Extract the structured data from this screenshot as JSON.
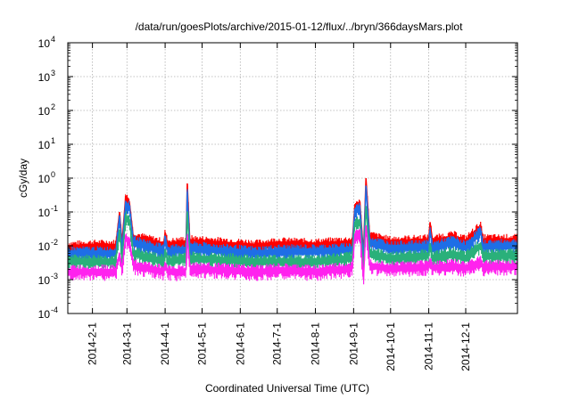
{
  "chart_data": {
    "type": "line",
    "title": "/data/run/goesPlots/archive/2015-01-12/flux/../bryn/366daysMars.plot",
    "xlabel": "Coordinated Universal Time (UTC)",
    "ylabel": "cGy/day",
    "y_scale": "log",
    "ylim": [
      0.0001,
      10000
    ],
    "xlim": [
      "2014-01-12",
      "2015-01-12"
    ],
    "grid": true,
    "legend": "none",
    "y_ticks": [
      {
        "base": "10",
        "exp": "-4",
        "value": 0.0001
      },
      {
        "base": "10",
        "exp": "-3",
        "value": 0.001
      },
      {
        "base": "10",
        "exp": "-2",
        "value": 0.01
      },
      {
        "base": "10",
        "exp": "-1",
        "value": 0.1
      },
      {
        "base": "10",
        "exp": "0",
        "value": 1
      },
      {
        "base": "10",
        "exp": "1",
        "value": 10
      },
      {
        "base": "10",
        "exp": "2",
        "value": 100
      },
      {
        "base": "10",
        "exp": "3",
        "value": 1000
      },
      {
        "base": "10",
        "exp": "4",
        "value": 10000
      }
    ],
    "x_ticks": [
      {
        "label": "2014-2-1",
        "date": "2014-02-01"
      },
      {
        "label": "2014-3-1",
        "date": "2014-03-01"
      },
      {
        "label": "2014-4-1",
        "date": "2014-04-01"
      },
      {
        "label": "2014-5-1",
        "date": "2014-05-01"
      },
      {
        "label": "2014-6-1",
        "date": "2014-06-01"
      },
      {
        "label": "2014-7-1",
        "date": "2014-07-01"
      },
      {
        "label": "2014-8-1",
        "date": "2014-08-01"
      },
      {
        "label": "2014-9-1",
        "date": "2014-09-01"
      },
      {
        "label": "2014-10-1",
        "date": "2014-10-01"
      },
      {
        "label": "2014-11-1",
        "date": "2014-11-01"
      },
      {
        "label": "2014-12-1",
        "date": "2014-12-01"
      }
    ],
    "series": [
      {
        "color": "#ff0000",
        "points": [
          [
            "2014-01-12",
            0.01
          ],
          [
            "2014-02-01",
            0.011
          ],
          [
            "2014-02-20",
            0.011
          ],
          [
            "2014-02-23",
            0.1
          ],
          [
            "2014-02-25",
            0.012
          ],
          [
            "2014-02-28",
            0.3
          ],
          [
            "2014-03-03",
            0.2
          ],
          [
            "2014-03-06",
            0.02
          ],
          [
            "2014-03-31",
            0.012
          ],
          [
            "2014-04-01",
            0.025
          ],
          [
            "2014-04-03",
            0.012
          ],
          [
            "2014-04-18",
            0.014
          ],
          [
            "2014-04-19",
            0.7
          ],
          [
            "2014-04-21",
            0.015
          ],
          [
            "2014-06-15",
            0.011
          ],
          [
            "2014-07-01",
            0.013
          ],
          [
            "2014-08-01",
            0.012
          ],
          [
            "2014-08-31",
            0.014
          ],
          [
            "2014-09-02",
            0.15
          ],
          [
            "2014-09-06",
            0.2
          ],
          [
            "2014-09-09",
            0.006
          ],
          [
            "2014-09-11",
            1.0
          ],
          [
            "2014-09-14",
            0.02
          ],
          [
            "2014-10-01",
            0.014
          ],
          [
            "2014-11-01",
            0.016
          ],
          [
            "2014-11-02",
            0.05
          ],
          [
            "2014-11-04",
            0.015
          ],
          [
            "2014-11-21",
            0.02
          ],
          [
            "2014-12-01",
            0.015
          ],
          [
            "2014-12-13",
            0.04
          ],
          [
            "2014-12-15",
            0.016
          ],
          [
            "2015-01-12",
            0.016
          ]
        ]
      },
      {
        "color": "#1e6ee6",
        "points": [
          [
            "2014-01-12",
            0.007
          ],
          [
            "2014-02-01",
            0.007
          ],
          [
            "2014-02-20",
            0.007
          ],
          [
            "2014-02-23",
            0.08
          ],
          [
            "2014-02-25",
            0.008
          ],
          [
            "2014-02-28",
            0.2
          ],
          [
            "2014-03-03",
            0.15
          ],
          [
            "2014-03-06",
            0.015
          ],
          [
            "2014-03-31",
            0.008
          ],
          [
            "2014-04-01",
            0.02
          ],
          [
            "2014-04-03",
            0.008
          ],
          [
            "2014-04-18",
            0.009
          ],
          [
            "2014-04-19",
            0.4
          ],
          [
            "2014-04-21",
            0.01
          ],
          [
            "2014-06-15",
            0.007
          ],
          [
            "2014-07-01",
            0.008
          ],
          [
            "2014-08-01",
            0.008
          ],
          [
            "2014-08-31",
            0.009
          ],
          [
            "2014-09-02",
            0.12
          ],
          [
            "2014-09-06",
            0.15
          ],
          [
            "2014-09-09",
            0.004
          ],
          [
            "2014-09-11",
            0.6
          ],
          [
            "2014-09-14",
            0.015
          ],
          [
            "2014-10-01",
            0.01
          ],
          [
            "2014-11-01",
            0.011
          ],
          [
            "2014-11-02",
            0.03
          ],
          [
            "2014-11-04",
            0.01
          ],
          [
            "2014-11-21",
            0.015
          ],
          [
            "2014-12-01",
            0.01
          ],
          [
            "2014-12-13",
            0.03
          ],
          [
            "2014-12-15",
            0.011
          ],
          [
            "2015-01-12",
            0.012
          ]
        ]
      },
      {
        "color": "#2ab07a",
        "points": [
          [
            "2014-01-12",
            0.004
          ],
          [
            "2014-02-01",
            0.004
          ],
          [
            "2014-02-20",
            0.004
          ],
          [
            "2014-02-23",
            0.03
          ],
          [
            "2014-02-25",
            0.004
          ],
          [
            "2014-02-28",
            0.08
          ],
          [
            "2014-03-03",
            0.06
          ],
          [
            "2014-03-06",
            0.007
          ],
          [
            "2014-03-31",
            0.004
          ],
          [
            "2014-04-01",
            0.008
          ],
          [
            "2014-04-03",
            0.004
          ],
          [
            "2014-04-18",
            0.005
          ],
          [
            "2014-04-19",
            0.1
          ],
          [
            "2014-04-21",
            0.005
          ],
          [
            "2014-06-15",
            0.004
          ],
          [
            "2014-07-01",
            0.004
          ],
          [
            "2014-08-01",
            0.004
          ],
          [
            "2014-08-31",
            0.005
          ],
          [
            "2014-09-02",
            0.05
          ],
          [
            "2014-09-06",
            0.06
          ],
          [
            "2014-09-09",
            0.002
          ],
          [
            "2014-09-11",
            0.15
          ],
          [
            "2014-09-14",
            0.007
          ],
          [
            "2014-10-01",
            0.005
          ],
          [
            "2014-11-01",
            0.006
          ],
          [
            "2014-11-02",
            0.012
          ],
          [
            "2014-11-04",
            0.005
          ],
          [
            "2014-11-21",
            0.007
          ],
          [
            "2014-12-01",
            0.005
          ],
          [
            "2014-12-13",
            0.012
          ],
          [
            "2014-12-15",
            0.006
          ],
          [
            "2015-01-12",
            0.006
          ]
        ]
      },
      {
        "color": "#ff22ee",
        "points": [
          [
            "2014-01-12",
            0.002
          ],
          [
            "2014-02-01",
            0.002
          ],
          [
            "2014-02-20",
            0.002
          ],
          [
            "2014-02-23",
            0.006
          ],
          [
            "2014-02-25",
            0.002
          ],
          [
            "2014-02-28",
            0.02
          ],
          [
            "2014-03-03",
            0.015
          ],
          [
            "2014-03-06",
            0.003
          ],
          [
            "2014-03-31",
            0.002
          ],
          [
            "2014-04-01",
            0.003
          ],
          [
            "2014-04-03",
            0.002
          ],
          [
            "2014-04-18",
            0.002
          ],
          [
            "2014-04-19",
            0.02
          ],
          [
            "2014-04-21",
            0.0025
          ],
          [
            "2014-06-15",
            0.002
          ],
          [
            "2014-07-01",
            0.0022
          ],
          [
            "2014-08-01",
            0.002
          ],
          [
            "2014-08-31",
            0.0025
          ],
          [
            "2014-09-02",
            0.02
          ],
          [
            "2014-09-06",
            0.03
          ],
          [
            "2014-09-09",
            0.001
          ],
          [
            "2014-09-11",
            0.04
          ],
          [
            "2014-09-14",
            0.003
          ],
          [
            "2014-10-01",
            0.0025
          ],
          [
            "2014-11-01",
            0.0028
          ],
          [
            "2014-11-02",
            0.004
          ],
          [
            "2014-11-04",
            0.0026
          ],
          [
            "2014-11-21",
            0.003
          ],
          [
            "2014-12-01",
            0.0025
          ],
          [
            "2014-12-13",
            0.004
          ],
          [
            "2014-12-15",
            0.0028
          ],
          [
            "2015-01-12",
            0.0028
          ]
        ]
      }
    ]
  }
}
